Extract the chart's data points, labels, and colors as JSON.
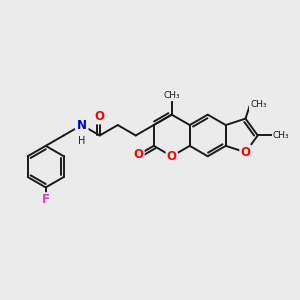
{
  "background_color": "#ebebeb",
  "bond_color": "#1a1a1a",
  "bond_width": 1.4,
  "atom_colors": {
    "O": "#ff0000",
    "N": "#0000cc",
    "F": "#cc44cc",
    "C": "#1a1a1a"
  },
  "font_size_atom": 8.5,
  "font_size_small": 7.5,
  "methyl_labels": [
    "CH₃",
    "CH₃",
    "CH₃"
  ],
  "atom_label_O": "O",
  "atom_label_N": "N",
  "atom_label_H": "H",
  "atom_label_F": "F"
}
